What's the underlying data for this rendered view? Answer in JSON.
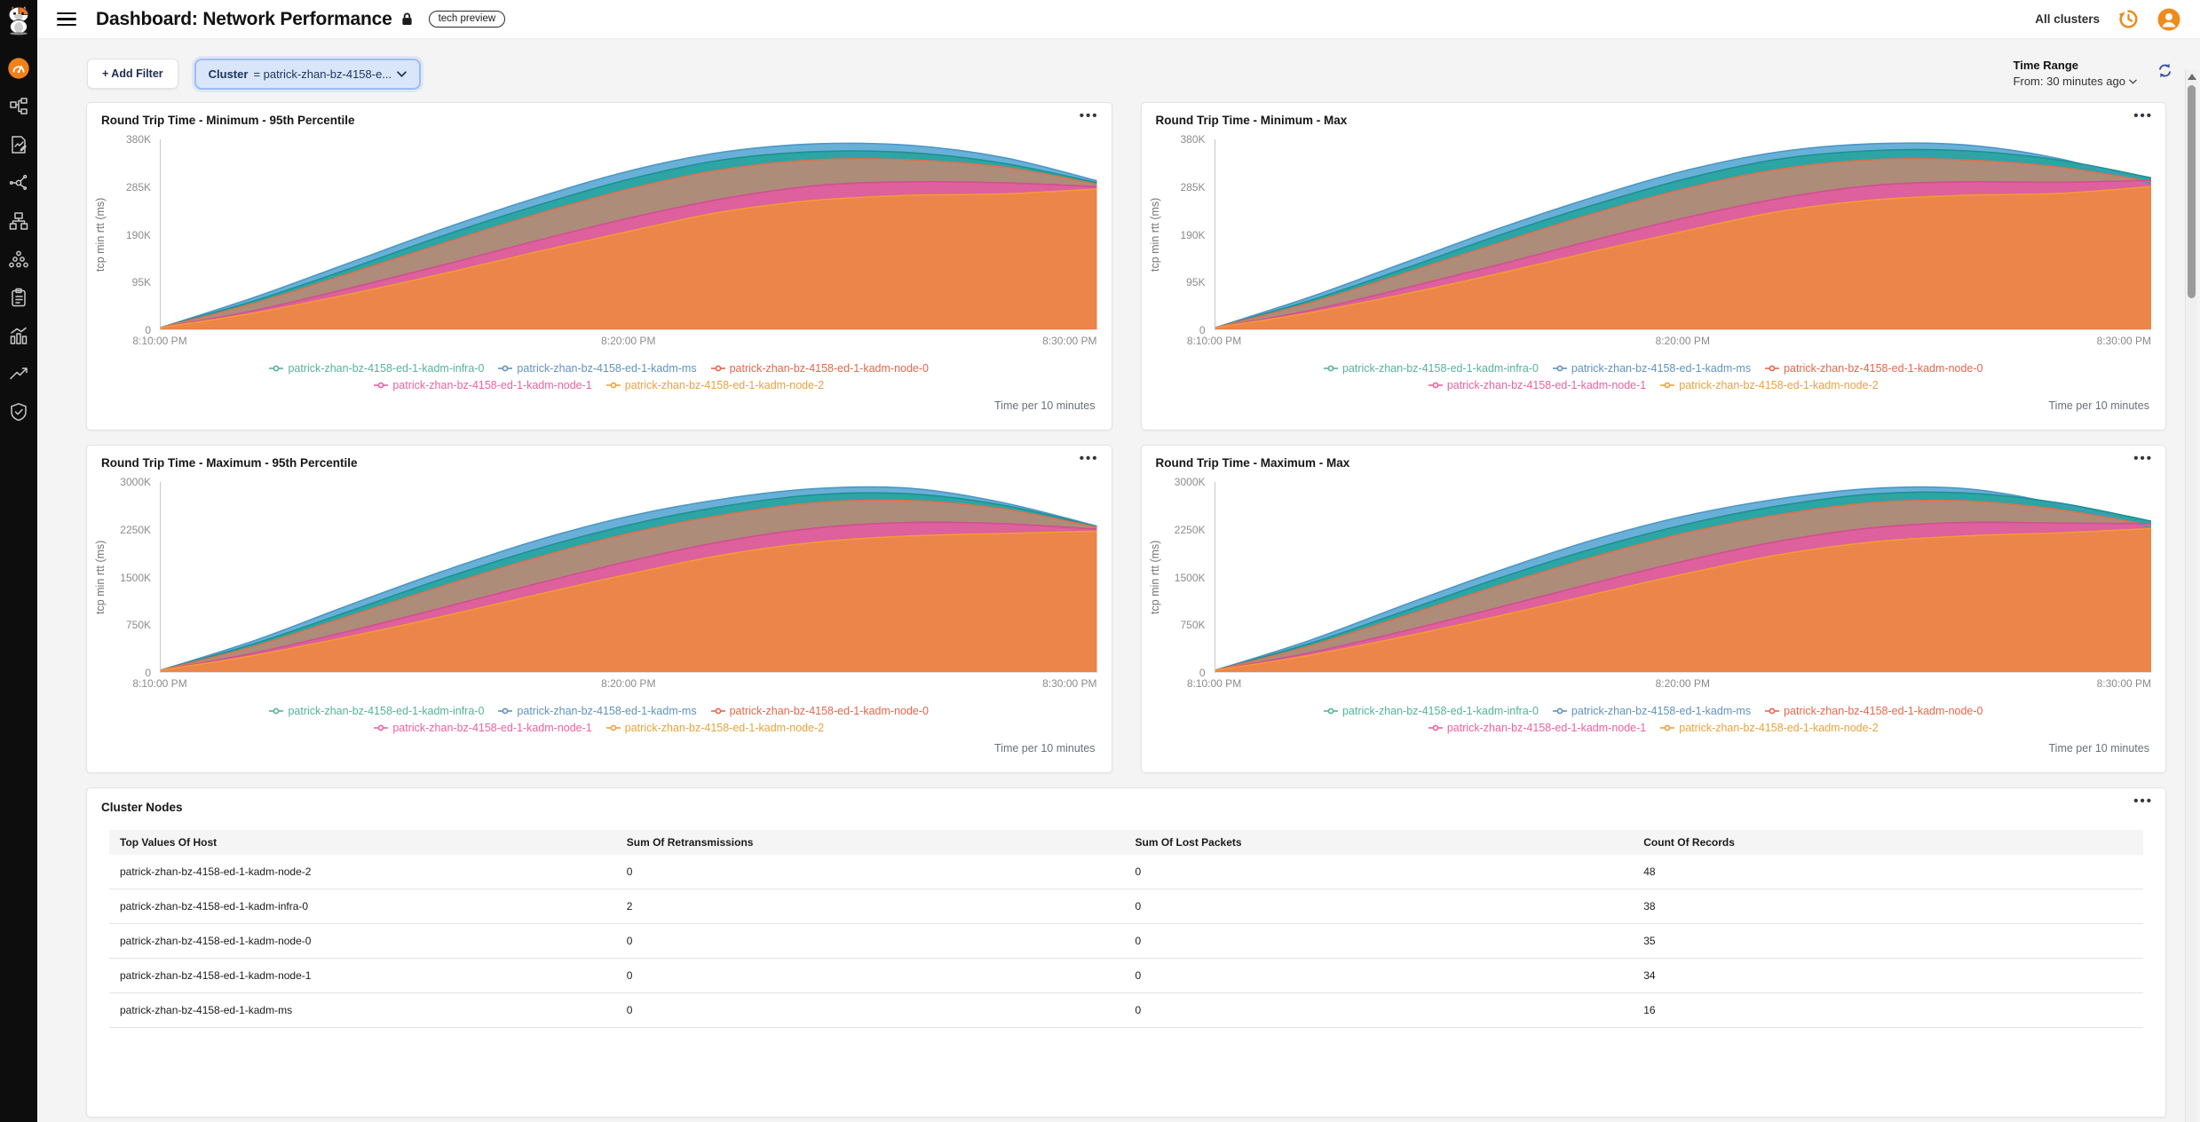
{
  "header": {
    "title": "Dashboard: Network Performance",
    "badge": "tech preview",
    "all_clusters": "All clusters"
  },
  "sidebar": {
    "icons": [
      "cat-logo",
      "gauge-icon",
      "topology-icon",
      "document-edit-icon",
      "share-graph-icon",
      "network-tree-icon",
      "circle-cluster-icon",
      "clipboard-icon",
      "bar-chart-icon",
      "trend-arrow-icon",
      "shield-check-icon"
    ],
    "active_icon": "gauge-icon"
  },
  "filters": {
    "add_filter": "+ Add Filter",
    "cluster_field": "Cluster",
    "cluster_value": "= patrick-zhan-bz-4158-e...",
    "time_range_label": "Time Range",
    "time_range_value": "From: 30 minutes ago"
  },
  "charts_shared": {
    "ylabel": "tcp min rtt (ms)",
    "footer": "Time per 10 minutes",
    "x_ticks": [
      "8:10:00 PM",
      "8:20:00 PM",
      "8:30:00 PM"
    ],
    "legend_rows": [
      3,
      2
    ],
    "legend_order": [
      "infra",
      "ms",
      "node0",
      "node1",
      "node2"
    ],
    "draw_order": [
      "ms",
      "infra",
      "node0",
      "node1",
      "node2"
    ]
  },
  "series_meta": {
    "infra": {
      "label": "patrick-zhan-bz-4158-ed-1-kadm-infra-0",
      "legend_color": "#54B399",
      "fill": "#2CA5A4",
      "stroke": "#1E9191"
    },
    "ms": {
      "label": "patrick-zhan-bz-4158-ed-1-kadm-ms",
      "legend_color": "#6092C0",
      "fill": "#69B0D8",
      "stroke": "#4B97C6"
    },
    "node0": {
      "label": "patrick-zhan-bz-4158-ed-1-kadm-node-0",
      "legend_color": "#E7664C",
      "fill": "#AE8C7A",
      "stroke": "#E0714F"
    },
    "node1": {
      "label": "patrick-zhan-bz-4158-ed-1-kadm-node-1",
      "legend_color": "#ED61A1",
      "fill": "#DE609D",
      "stroke": "#D14F92"
    },
    "node2": {
      "label": "patrick-zhan-bz-4158-ed-1-kadm-node-2",
      "legend_color": "#EBA23C",
      "fill": "#EC8549",
      "stroke": "#F29A38"
    }
  },
  "chart_data": [
    {
      "type": "area",
      "title": "Round Trip Time - Minimum - 95th Percentile",
      "ylabel": "tcp min rtt (ms)",
      "xlabel": "Time per 10 minutes",
      "ymax_k": 380,
      "y_ticks": [
        "380K",
        "285K",
        "190K",
        "95K",
        "0"
      ],
      "x_range": [
        "8:10:00 PM",
        "8:30:00 PM"
      ],
      "series": [
        {
          "key": "ms",
          "name": "patrick-zhan-bz-4158-ed-1-kadm-ms",
          "values_k": [
            0,
            62,
            132,
            202,
            266,
            322,
            361,
            378,
            375,
            350,
            302
          ]
        },
        {
          "key": "infra",
          "name": "patrick-zhan-bz-4158-ed-1-kadm-infra-0",
          "values_k": [
            0,
            55,
            120,
            188,
            250,
            305,
            345,
            362,
            360,
            338,
            298
          ]
        },
        {
          "key": "node0",
          "name": "patrick-zhan-bz-4158-ed-1-kadm-node-0",
          "values_k": [
            0,
            50,
            110,
            172,
            232,
            285,
            325,
            345,
            345,
            330,
            295
          ]
        },
        {
          "key": "node1",
          "name": "patrick-zhan-bz-4158-ed-1-kadm-node-1",
          "values_k": [
            0,
            35,
            80,
            128,
            178,
            225,
            265,
            292,
            300,
            298,
            290
          ]
        },
        {
          "key": "node2",
          "name": "patrick-zhan-bz-4158-ed-1-kadm-node-2",
          "values_k": [
            0,
            30,
            68,
            110,
            155,
            198,
            238,
            262,
            272,
            275,
            285
          ]
        }
      ]
    },
    {
      "type": "area",
      "title": "Round Trip Time - Minimum - Max",
      "ylabel": "tcp min rtt (ms)",
      "xlabel": "Time per 10 minutes",
      "ymax_k": 380,
      "y_ticks": [
        "380K",
        "285K",
        "190K",
        "95K",
        "0"
      ],
      "x_range": [
        "8:10:00 PM",
        "8:30:00 PM"
      ],
      "series": [
        {
          "key": "ms",
          "name": "patrick-zhan-bz-4158-ed-1-kadm-ms",
          "values_k": [
            0,
            62,
            132,
            202,
            266,
            322,
            361,
            378,
            376,
            348,
            296
          ]
        },
        {
          "key": "infra",
          "name": "patrick-zhan-bz-4158-ed-1-kadm-infra-0",
          "values_k": [
            0,
            55,
            120,
            188,
            250,
            305,
            346,
            364,
            364,
            345,
            308
          ]
        },
        {
          "key": "node0",
          "name": "patrick-zhan-bz-4158-ed-1-kadm-node-0",
          "values_k": [
            0,
            50,
            110,
            172,
            232,
            285,
            325,
            345,
            345,
            330,
            300
          ]
        },
        {
          "key": "node1",
          "name": "patrick-zhan-bz-4158-ed-1-kadm-node-1",
          "values_k": [
            0,
            35,
            80,
            128,
            178,
            225,
            265,
            292,
            300,
            299,
            303
          ]
        },
        {
          "key": "node2",
          "name": "patrick-zhan-bz-4158-ed-1-kadm-node-2",
          "values_k": [
            0,
            30,
            68,
            110,
            155,
            198,
            238,
            262,
            272,
            276,
            290
          ]
        }
      ]
    },
    {
      "type": "area",
      "title": "Round Trip Time - Maximum - 95th Percentile",
      "ylabel": "tcp min rtt (ms)",
      "xlabel": "Time per 10 minutes",
      "ymax_k": 3000,
      "y_ticks": [
        "3000K",
        "2250K",
        "1500K",
        "750K",
        "0"
      ],
      "x_range": [
        "8:10:00 PM",
        "8:30:00 PM"
      ],
      "series": [
        {
          "key": "ms",
          "name": "patrick-zhan-bz-4158-ed-1-kadm-ms",
          "values_k": [
            0,
            480,
            1050,
            1600,
            2100,
            2500,
            2780,
            2950,
            2955,
            2720,
            2340
          ]
        },
        {
          "key": "infra",
          "name": "patrick-zhan-bz-4158-ed-1-kadm-infra-0",
          "values_k": [
            0,
            430,
            950,
            1480,
            1960,
            2360,
            2660,
            2850,
            2865,
            2680,
            2330
          ]
        },
        {
          "key": "node0",
          "name": "patrick-zhan-bz-4158-ed-1-kadm-node-0",
          "values_k": [
            0,
            390,
            870,
            1360,
            1820,
            2220,
            2520,
            2720,
            2755,
            2620,
            2320
          ]
        },
        {
          "key": "node1",
          "name": "patrick-zhan-bz-4158-ed-1-kadm-node-1",
          "values_k": [
            0,
            280,
            630,
            1010,
            1400,
            1770,
            2090,
            2310,
            2400,
            2380,
            2290
          ]
        },
        {
          "key": "node2",
          "name": "patrick-zhan-bz-4158-ed-1-kadm-node-2",
          "values_k": [
            0,
            240,
            540,
            870,
            1220,
            1560,
            1870,
            2080,
            2180,
            2220,
            2260
          ]
        }
      ]
    },
    {
      "type": "area",
      "title": "Round Trip Time - Maximum - Max",
      "ylabel": "tcp min rtt (ms)",
      "xlabel": "Time per 10 minutes",
      "ymax_k": 3000,
      "y_ticks": [
        "3000K",
        "2250K",
        "1500K",
        "750K",
        "0"
      ],
      "x_range": [
        "8:10:00 PM",
        "8:30:00 PM"
      ],
      "series": [
        {
          "key": "ms",
          "name": "patrick-zhan-bz-4158-ed-1-kadm-ms",
          "values_k": [
            0,
            480,
            1050,
            1600,
            2100,
            2500,
            2780,
            2950,
            2950,
            2700,
            2320
          ]
        },
        {
          "key": "infra",
          "name": "patrick-zhan-bz-4158-ed-1-kadm-infra-0",
          "values_k": [
            0,
            430,
            950,
            1480,
            1960,
            2360,
            2665,
            2860,
            2880,
            2720,
            2420
          ]
        },
        {
          "key": "node0",
          "name": "patrick-zhan-bz-4158-ed-1-kadm-node-0",
          "values_k": [
            0,
            390,
            870,
            1360,
            1820,
            2220,
            2520,
            2720,
            2750,
            2610,
            2350
          ]
        },
        {
          "key": "node1",
          "name": "patrick-zhan-bz-4158-ed-1-kadm-node-1",
          "values_k": [
            0,
            280,
            630,
            1010,
            1400,
            1770,
            2090,
            2310,
            2400,
            2390,
            2380
          ]
        },
        {
          "key": "node2",
          "name": "patrick-zhan-bz-4158-ed-1-kadm-node-2",
          "values_k": [
            0,
            240,
            540,
            870,
            1220,
            1560,
            1870,
            2080,
            2180,
            2230,
            2300
          ]
        }
      ]
    }
  ],
  "table": {
    "title": "Cluster Nodes",
    "columns": [
      "Top Values Of Host",
      "Sum Of Retransmissions",
      "Sum Of Lost Packets",
      "Count Of Records"
    ],
    "rows": [
      [
        "patrick-zhan-bz-4158-ed-1-kadm-node-2",
        "0",
        "0",
        "48"
      ],
      [
        "patrick-zhan-bz-4158-ed-1-kadm-infra-0",
        "2",
        "0",
        "38"
      ],
      [
        "patrick-zhan-bz-4158-ed-1-kadm-node-0",
        "0",
        "0",
        "35"
      ],
      [
        "patrick-zhan-bz-4158-ed-1-kadm-node-1",
        "0",
        "0",
        "34"
      ],
      [
        "patrick-zhan-bz-4158-ed-1-kadm-ms",
        "0",
        "0",
        "16"
      ]
    ]
  },
  "colors": {
    "accent_orange": "#EF8A1C",
    "sidebar_bg": "#0D0D0D",
    "filter_pill_bg": "#D9E6F9",
    "filter_pill_border": "#9CBDF3",
    "refresh_blue": "#3A53A4",
    "page_bg": "#F4F4F4"
  }
}
